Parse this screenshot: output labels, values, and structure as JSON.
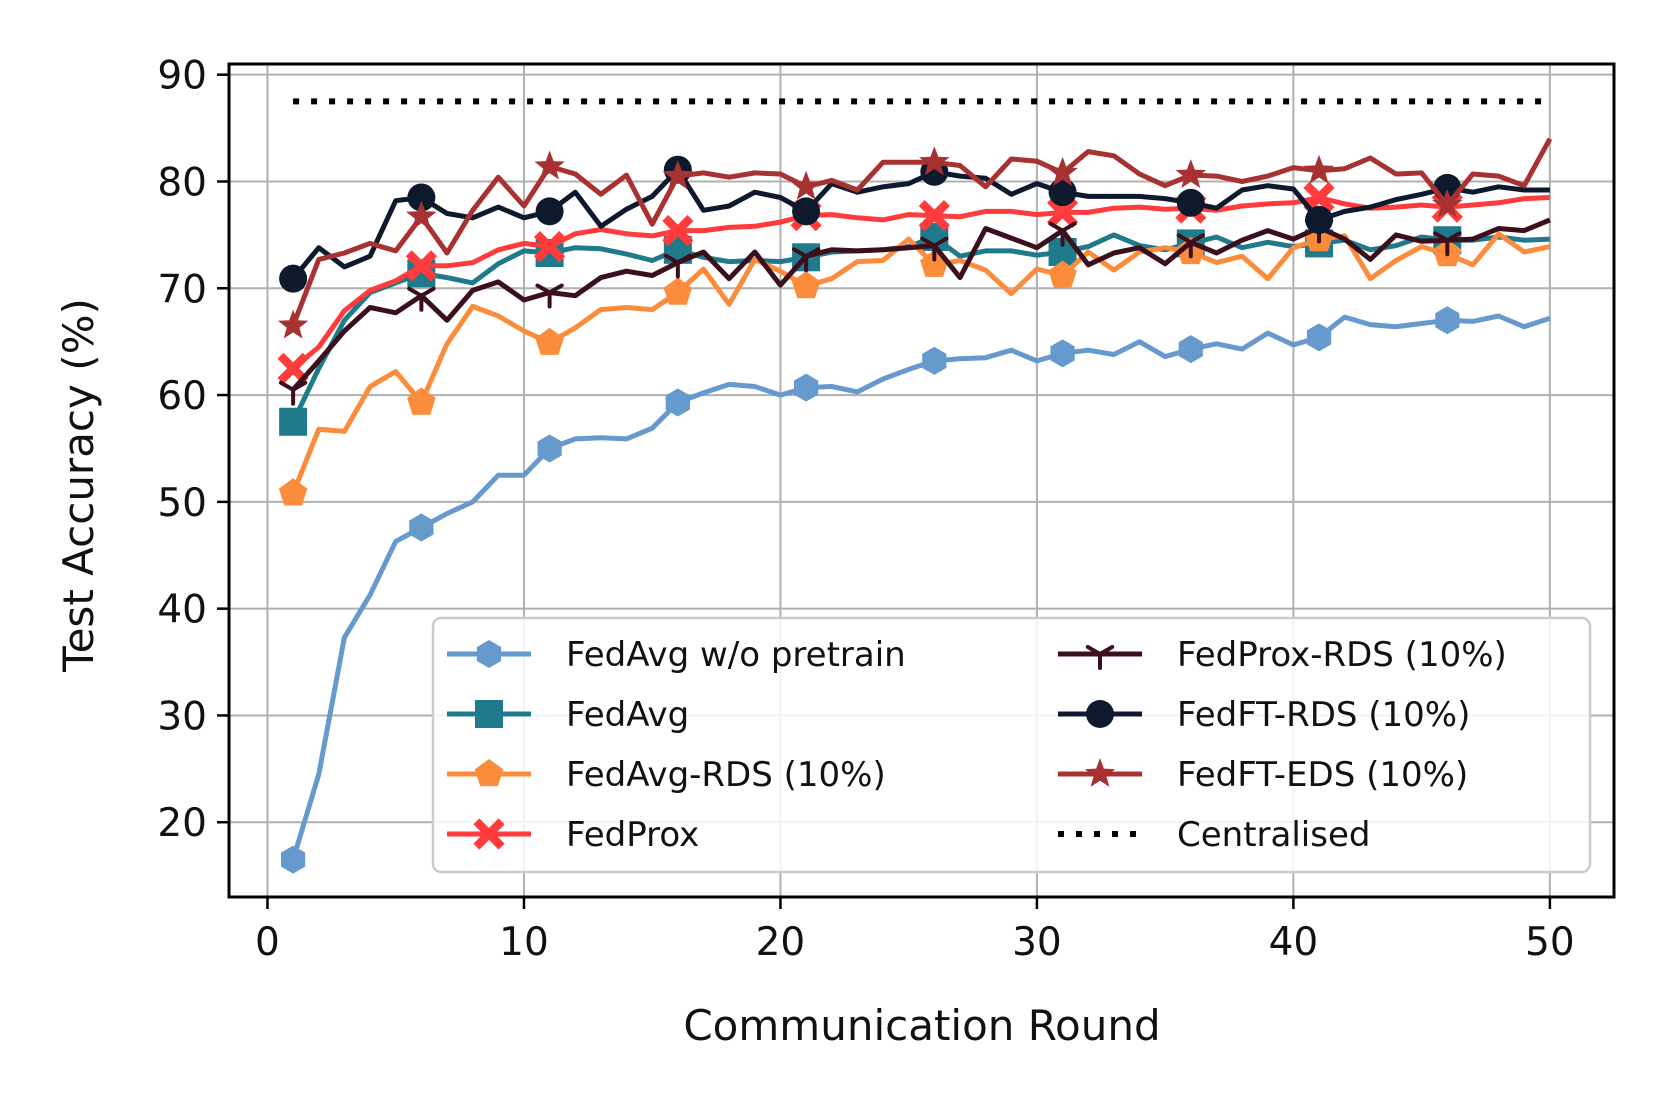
{
  "chart_data": {
    "type": "line",
    "title": "",
    "xlabel": "Communication Round",
    "ylabel": "Test Accuracy (%)",
    "xlim": [
      -1.5,
      52.5
    ],
    "ylim": [
      13,
      91
    ],
    "xticks": [
      0,
      10,
      20,
      30,
      40,
      50
    ],
    "yticks": [
      20,
      30,
      40,
      50,
      60,
      70,
      80,
      90
    ],
    "grid": true,
    "legend_position": "lower-right",
    "x": [
      1,
      2,
      3,
      4,
      5,
      6,
      7,
      8,
      9,
      10,
      11,
      12,
      13,
      14,
      15,
      16,
      17,
      18,
      19,
      20,
      21,
      22,
      23,
      24,
      25,
      26,
      27,
      28,
      29,
      30,
      31,
      32,
      33,
      34,
      35,
      36,
      37,
      38,
      39,
      40,
      41,
      42,
      43,
      44,
      45,
      46,
      47,
      48,
      49,
      50
    ],
    "series": [
      {
        "name": "FedAvg w/o pretrain",
        "color": "#6699cc",
        "marker": "hexagon",
        "values": [
          16.5,
          24.5,
          37.3,
          41.3,
          46.3,
          47.6,
          48.9,
          50.0,
          52.5,
          52.5,
          55.0,
          55.9,
          56.0,
          55.9,
          56.9,
          59.3,
          60.2,
          61.0,
          60.8,
          60.0,
          60.7,
          60.8,
          60.3,
          61.5,
          62.4,
          63.2,
          63.4,
          63.5,
          64.2,
          63.2,
          63.9,
          64.2,
          63.8,
          65.0,
          63.6,
          64.3,
          64.8,
          64.3,
          65.8,
          64.7,
          65.4,
          67.3,
          66.6,
          66.4,
          66.7,
          67.0,
          66.9,
          67.4,
          66.4,
          67.2
        ]
      },
      {
        "name": "FedAvg",
        "color": "#1f7a8c",
        "marker": "square",
        "values": [
          57.5,
          62.5,
          67.0,
          69.6,
          70.5,
          71.4,
          71.0,
          70.5,
          72.3,
          73.5,
          73.3,
          73.8,
          73.7,
          73.2,
          72.6,
          73.6,
          72.9,
          72.5,
          72.6,
          72.5,
          72.9,
          73.4,
          73.5,
          73.6,
          73.9,
          74.8,
          73.0,
          73.5,
          73.5,
          73.1,
          73.4,
          73.9,
          75.0,
          74.0,
          73.6,
          74.2,
          74.8,
          73.8,
          74.3,
          73.9,
          74.2,
          74.5,
          73.6,
          74.0,
          74.8,
          74.5,
          74.5,
          74.8,
          74.5,
          74.6
        ]
      },
      {
        "name": "FedAvg-RDS (10%)",
        "color": "#fb8c3c",
        "marker": "pentagon",
        "values": [
          50.8,
          56.8,
          56.6,
          60.8,
          62.2,
          59.3,
          64.8,
          68.3,
          67.4,
          66.0,
          64.9,
          66.3,
          68.0,
          68.2,
          68.0,
          69.6,
          71.8,
          68.5,
          72.7,
          71.6,
          70.2,
          70.9,
          72.5,
          72.6,
          74.6,
          72.2,
          72.6,
          71.7,
          69.5,
          71.8,
          71.2,
          73.4,
          71.7,
          73.4,
          73.8,
          73.4,
          72.4,
          73.0,
          70.9,
          73.8,
          74.6,
          74.9,
          70.9,
          72.6,
          73.9,
          73.2,
          72.2,
          75.1,
          73.4,
          73.9
        ]
      },
      {
        "name": "FedProx",
        "color": "#ff3b3b",
        "marker": "x-filled",
        "values": [
          62.5,
          64.5,
          67.9,
          69.8,
          70.7,
          72.1,
          72.1,
          72.4,
          73.6,
          74.2,
          73.9,
          75.1,
          75.5,
          75.1,
          74.9,
          75.4,
          75.4,
          75.7,
          75.8,
          76.2,
          76.8,
          76.9,
          76.6,
          76.4,
          76.9,
          76.8,
          76.7,
          77.2,
          77.2,
          76.9,
          77.1,
          77.1,
          77.5,
          77.6,
          77.4,
          77.5,
          77.3,
          77.7,
          77.9,
          78.0,
          78.5,
          77.9,
          77.5,
          77.6,
          77.8,
          77.6,
          77.8,
          78.0,
          78.4,
          78.5
        ]
      },
      {
        "name": "FedProx-RDS (10%)",
        "color": "#3b0f1b",
        "marker": "tri-down",
        "values": [
          60.5,
          63.2,
          66.0,
          68.2,
          67.7,
          69.3,
          67.0,
          69.8,
          70.6,
          68.9,
          69.6,
          69.3,
          71.0,
          71.6,
          71.2,
          72.4,
          73.4,
          70.9,
          73.4,
          70.3,
          73.0,
          73.6,
          73.5,
          73.6,
          73.8,
          74.0,
          71.0,
          75.6,
          74.7,
          73.8,
          75.4,
          72.2,
          73.3,
          73.8,
          72.3,
          74.3,
          73.3,
          74.5,
          75.4,
          74.6,
          75.7,
          74.6,
          72.7,
          75.0,
          74.4,
          74.5,
          74.6,
          75.6,
          75.4,
          76.4
        ]
      },
      {
        "name": "FedFT-RDS (10%)",
        "color": "#0d1a2e",
        "marker": "circle",
        "values": [
          70.9,
          73.8,
          72.0,
          73.0,
          78.2,
          78.5,
          77.0,
          76.6,
          77.6,
          76.6,
          77.2,
          79.0,
          75.8,
          77.4,
          78.6,
          81.1,
          77.3,
          77.7,
          79.0,
          78.5,
          77.2,
          79.8,
          79.0,
          79.5,
          79.8,
          80.9,
          80.5,
          80.3,
          78.8,
          79.8,
          79.0,
          78.6,
          78.6,
          78.6,
          78.4,
          78.0,
          77.5,
          79.2,
          79.6,
          79.3,
          76.4,
          77.2,
          77.6,
          78.3,
          78.8,
          79.4,
          79.0,
          79.5,
          79.2,
          79.2
        ]
      },
      {
        "name": "FedFT-EDS (10%)",
        "color": "#a83232",
        "marker": "star",
        "values": [
          66.5,
          72.7,
          73.3,
          74.2,
          73.5,
          76.7,
          73.3,
          77.3,
          80.4,
          77.7,
          81.4,
          80.7,
          78.8,
          80.6,
          76.0,
          80.5,
          80.8,
          80.4,
          80.8,
          80.7,
          79.5,
          80.1,
          79.2,
          81.8,
          81.8,
          81.8,
          81.5,
          79.5,
          82.1,
          81.9,
          80.8,
          82.8,
          82.4,
          80.7,
          79.6,
          80.6,
          80.5,
          80.0,
          80.5,
          81.3,
          81.0,
          81.2,
          82.2,
          80.7,
          80.8,
          77.8,
          80.7,
          80.5,
          79.6,
          84.0
        ]
      },
      {
        "name": "Centralised",
        "color": "#000000",
        "marker": "none",
        "linestyle": "dotted",
        "values": [
          87.5,
          87.5,
          87.5,
          87.5,
          87.5,
          87.5,
          87.5,
          87.5,
          87.5,
          87.5,
          87.5,
          87.5,
          87.5,
          87.5,
          87.5,
          87.5,
          87.5,
          87.5,
          87.5,
          87.5,
          87.5,
          87.5,
          87.5,
          87.5,
          87.5,
          87.5,
          87.5,
          87.5,
          87.5,
          87.5,
          87.5,
          87.5,
          87.5,
          87.5,
          87.5,
          87.5,
          87.5,
          87.5,
          87.5,
          87.5,
          87.5,
          87.5,
          87.5,
          87.5,
          87.5,
          87.5,
          87.5,
          87.5,
          87.5,
          87.5
        ]
      }
    ]
  }
}
